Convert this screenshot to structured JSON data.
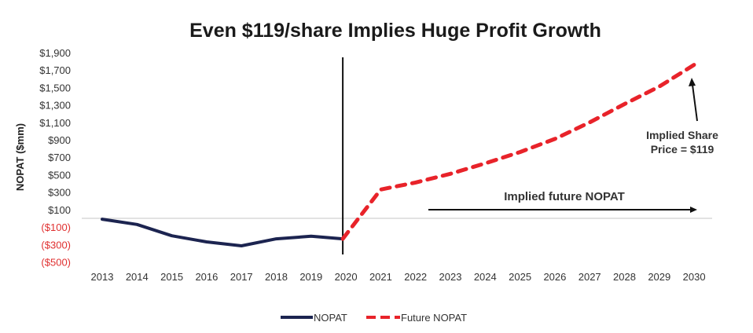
{
  "chart_data": {
    "type": "line",
    "title": "Even $119/share Implies Huge Profit Growth",
    "xlabel": "",
    "ylabel": "NOPAT ($mm)",
    "ylim": [
      -500,
      1900
    ],
    "grid": "zero-line only",
    "x": [
      "2013",
      "2014",
      "2015",
      "2016",
      "2017",
      "2018",
      "2019",
      "2020",
      "2021",
      "2022",
      "2023",
      "2024",
      "2025",
      "2026",
      "2027",
      "2028",
      "2029",
      "2030"
    ],
    "y_ticks": [
      {
        "value": 1900,
        "label": "$1,900"
      },
      {
        "value": 1700,
        "label": "$1,700"
      },
      {
        "value": 1500,
        "label": "$1,500"
      },
      {
        "value": 1300,
        "label": "$1,300"
      },
      {
        "value": 1100,
        "label": "$1,100"
      },
      {
        "value": 900,
        "label": "$900"
      },
      {
        "value": 700,
        "label": "$700"
      },
      {
        "value": 500,
        "label": "$500"
      },
      {
        "value": 300,
        "label": "$300"
      },
      {
        "value": 100,
        "label": "$100"
      },
      {
        "value": -100,
        "label": "($100)"
      },
      {
        "value": -300,
        "label": "($300)"
      },
      {
        "value": -500,
        "label": "($500)"
      }
    ],
    "series": [
      {
        "name": "NOPAT",
        "color": "#1c2450",
        "style": "solid",
        "x": [
          "2013",
          "2014",
          "2015",
          "2016",
          "2017",
          "2018",
          "2019",
          "2020"
        ],
        "values": [
          -10,
          -70,
          -200,
          -270,
          -315,
          -235,
          -205,
          -235
        ]
      },
      {
        "name": "Future NOPAT",
        "color": "#e8232a",
        "style": "dashed",
        "x": [
          "2020",
          "2021",
          "2022",
          "2023",
          "2024",
          "2025",
          "2026",
          "2027",
          "2028",
          "2029",
          "2030"
        ],
        "values": [
          -235,
          330,
          410,
          510,
          630,
          760,
          910,
          1100,
          1310,
          1510,
          1760
        ]
      }
    ],
    "divider_at": "2020",
    "annotations": [
      {
        "text": "Implied future NOPAT",
        "type": "arrow-right",
        "from": "2022",
        "to": "2030"
      },
      {
        "lines": [
          "Implied Share",
          "Price = $119"
        ],
        "type": "arrow-up",
        "target": "2030"
      }
    ],
    "legend": {
      "placement": "bottom-center",
      "entries": [
        "NOPAT",
        "Future NOPAT"
      ]
    },
    "negative_tick_color": "#e03030"
  }
}
